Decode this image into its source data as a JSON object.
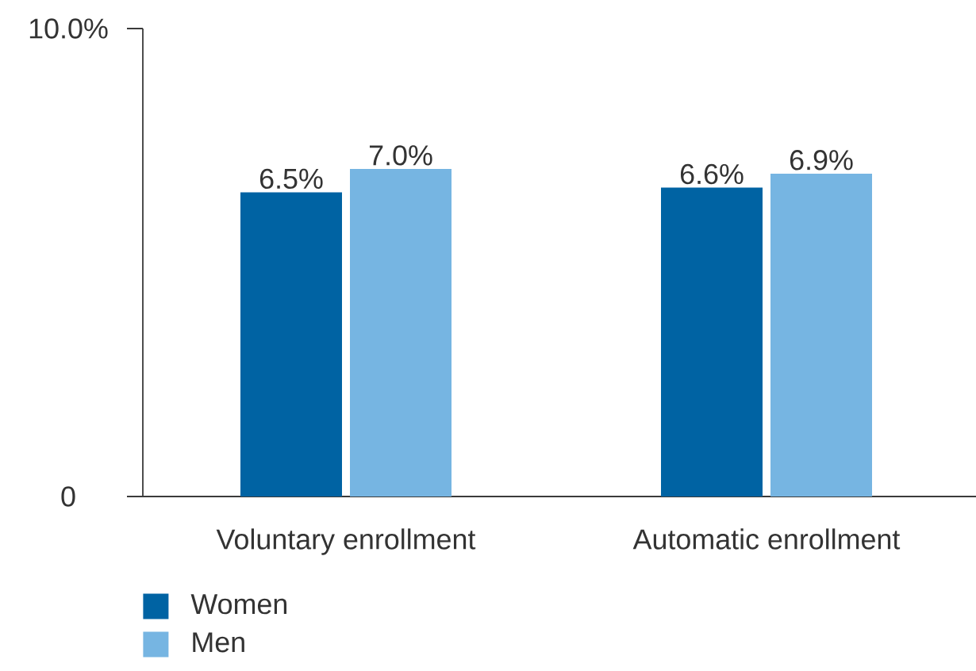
{
  "chart_data": {
    "type": "bar",
    "categories": [
      "Voluntary enrollment",
      "Automatic enrollment"
    ],
    "series": [
      {
        "name": "Women",
        "color": "#0063a3",
        "values": [
          6.5,
          6.6
        ],
        "value_labels": [
          "6.5%",
          "6.6%"
        ]
      },
      {
        "name": "Men",
        "color": "#76b5e2",
        "values": [
          7.0,
          6.9
        ],
        "value_labels": [
          "7.0%",
          "6.9%"
        ]
      }
    ],
    "ylim": [
      0,
      10
    ],
    "yticks": [
      0,
      {
        "value": 10,
        "label": "10.0%"
      }
    ],
    "legend": "bottom left",
    "grid": false
  }
}
